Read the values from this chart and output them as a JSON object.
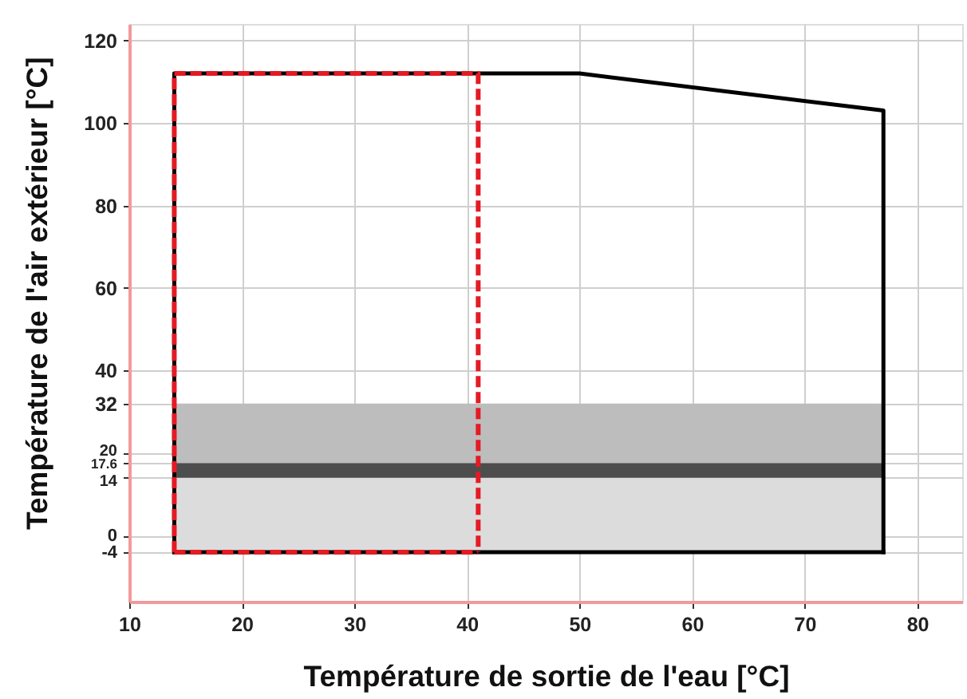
{
  "chart_data": {
    "type": "line",
    "xlabel": "Température de sortie de l'eau [°C]",
    "ylabel": "Température de l'air extérieur [°C]",
    "xlim": [
      10,
      84
    ],
    "ylim": [
      -16,
      124
    ],
    "xticks": [
      10,
      20,
      30,
      40,
      50,
      60,
      70,
      80
    ],
    "yticks": [
      -4,
      0,
      14,
      17.6,
      20,
      32,
      40,
      60,
      80,
      100,
      120
    ],
    "grid": true,
    "series": [
      {
        "color": "#000000",
        "line_style": "solid",
        "x": [
          14,
          14,
          50,
          77,
          77
        ],
        "values": [
          -4,
          112,
          112,
          103,
          -4
        ]
      },
      {
        "color": "#000000",
        "line_style": "solid",
        "x": [
          14,
          77
        ],
        "values": [
          -4,
          -4
        ]
      },
      {
        "color": "#e31b23",
        "line_style": "dashed",
        "x": [
          14,
          14,
          41,
          41
        ],
        "values": [
          -4,
          112,
          112,
          -4
        ]
      },
      {
        "color": "#e31b23",
        "line_style": "dashed",
        "x": [
          14,
          41
        ],
        "values": [
          -4,
          -4
        ]
      }
    ],
    "bands": [
      {
        "axis": "y",
        "from": -4,
        "to": 14,
        "color": "#dcdcdc"
      },
      {
        "axis": "y",
        "from": 14,
        "to": 17.6,
        "color": "#4d4d4d"
      },
      {
        "axis": "y",
        "from": 17.6,
        "to": 32,
        "color": "#bdbdbd"
      }
    ]
  }
}
